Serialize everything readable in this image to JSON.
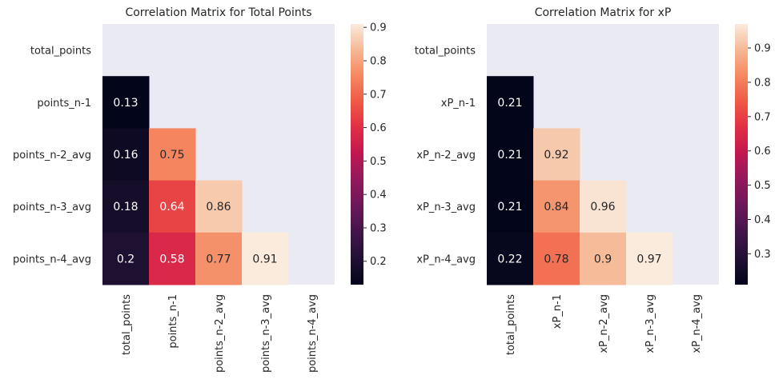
{
  "chart_data": [
    {
      "type": "heatmap",
      "title": "Correlation Matrix for Total Points",
      "labels": [
        "total_points",
        "points_n-1",
        "points_n-2_avg",
        "points_n-3_avg",
        "points_n-4_avg"
      ],
      "matrix": [
        [
          null,
          null,
          null,
          null,
          null
        ],
        [
          0.13,
          null,
          null,
          null,
          null
        ],
        [
          0.16,
          0.75,
          null,
          null,
          null
        ],
        [
          0.18,
          0.64,
          0.86,
          null,
          null
        ],
        [
          0.2,
          0.58,
          0.77,
          0.91,
          null
        ]
      ],
      "annotations": [
        [
          null,
          null,
          null,
          null,
          null
        ],
        [
          "0.13",
          null,
          null,
          null,
          null
        ],
        [
          "0.16",
          "0.75",
          null,
          null,
          null
        ],
        [
          "0.18",
          "0.64",
          "0.86",
          null,
          null
        ],
        [
          "0.2",
          "0.58",
          "0.77",
          "0.91",
          null
        ]
      ],
      "vmin": 0.13,
      "vmax": 0.91,
      "colorbar_ticks": [
        0.2,
        0.3,
        0.4,
        0.5,
        0.6,
        0.7,
        0.8,
        0.9
      ],
      "colorbar_tick_labels": [
        "0.2",
        "0.3",
        "0.4",
        "0.5",
        "0.6",
        "0.7",
        "0.8",
        "0.9"
      ],
      "mask": "upper triangle including diagonal",
      "colormap": "rocket",
      "grid": false,
      "legend": "colorbar right"
    },
    {
      "type": "heatmap",
      "title": "Correlation Matrix for xP",
      "labels": [
        "total_points",
        "xP_n-1",
        "xP_n-2_avg",
        "xP_n-3_avg",
        "xP_n-4_avg"
      ],
      "matrix": [
        [
          null,
          null,
          null,
          null,
          null
        ],
        [
          0.21,
          null,
          null,
          null,
          null
        ],
        [
          0.21,
          0.92,
          null,
          null,
          null
        ],
        [
          0.21,
          0.84,
          0.96,
          null,
          null
        ],
        [
          0.22,
          0.78,
          0.9,
          0.97,
          null
        ]
      ],
      "annotations": [
        [
          null,
          null,
          null,
          null,
          null
        ],
        [
          "0.21",
          null,
          null,
          null,
          null
        ],
        [
          "0.21",
          "0.92",
          null,
          null,
          null
        ],
        [
          "0.21",
          "0.84",
          "0.96",
          null,
          null
        ],
        [
          "0.22",
          "0.78",
          "0.9",
          "0.97",
          null
        ]
      ],
      "vmin": 0.21,
      "vmax": 0.97,
      "colorbar_ticks": [
        0.3,
        0.4,
        0.5,
        0.6,
        0.7,
        0.8,
        0.9
      ],
      "colorbar_tick_labels": [
        "0.3",
        "0.4",
        "0.5",
        "0.6",
        "0.7",
        "0.8",
        "0.9"
      ],
      "mask": "upper triangle including diagonal",
      "colormap": "rocket",
      "grid": false,
      "legend": "colorbar right"
    }
  ],
  "colors": {
    "background": "#ffffff",
    "axes_face": "#eaeaf2",
    "text": "#262626",
    "annotation_dark_text": "#262626",
    "annotation_light_text": "#ffffff"
  }
}
